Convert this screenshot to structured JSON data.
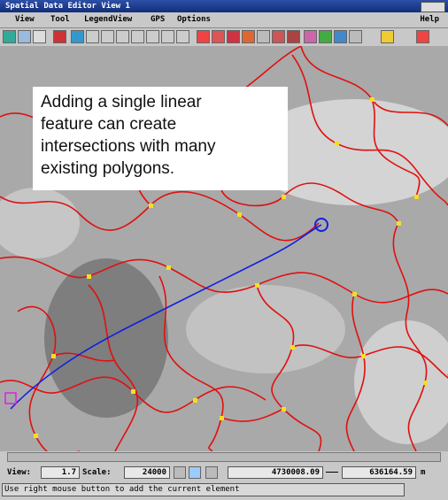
{
  "window": {
    "title": "Spatial Data Editor View 1"
  },
  "menu": {
    "items": [
      "View",
      "Tool",
      "LegendView",
      "GPS",
      "Options"
    ],
    "help": "Help"
  },
  "callout": {
    "lines": [
      "Adding a single linear",
      "feature can create",
      "intersections with many",
      "existing polygons."
    ]
  },
  "status": {
    "view_label": "View:",
    "view_value": "1.7",
    "scale_label": "Scale:",
    "scale_value": "24000",
    "y_coord": "4730008.09",
    "x_coord": "636164.59",
    "unit": "m"
  },
  "message": "Use right mouse button to add the current element"
}
